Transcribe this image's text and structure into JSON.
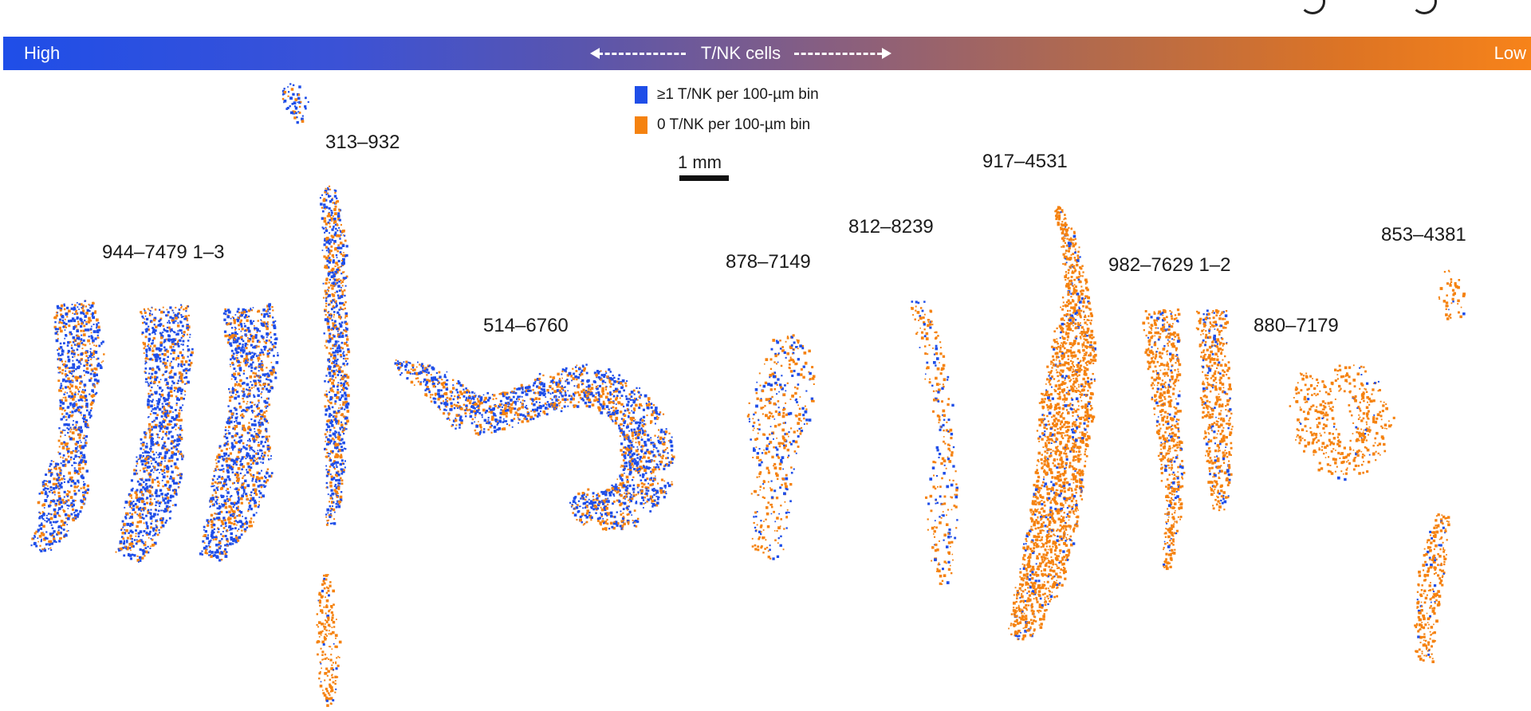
{
  "colors": {
    "high": "#1f4ee8",
    "low": "#f7831a",
    "blue_bin": "#1f4ee8",
    "orange_bin": "#f5820f"
  },
  "gradient": {
    "high_label": "High",
    "low_label": "Low",
    "center_label": "T/NK cells"
  },
  "legend": [
    {
      "label": "≥1 T/NK per 100-µm bin",
      "color": "#1f4ee8"
    },
    {
      "label": "0 T/NK per 100-µm bin",
      "color": "#f5820f"
    }
  ],
  "scale_bar": {
    "label": "1 mm"
  },
  "samples": [
    {
      "label": "944–7479 1–3"
    },
    {
      "label": "313–932"
    },
    {
      "label": "514–6760"
    },
    {
      "label": "878–7149"
    },
    {
      "label": "812–8239"
    },
    {
      "label": "917–4531"
    },
    {
      "label": "982–7629 1–2"
    },
    {
      "label": "853–4381"
    },
    {
      "label": "880–7179"
    }
  ]
}
